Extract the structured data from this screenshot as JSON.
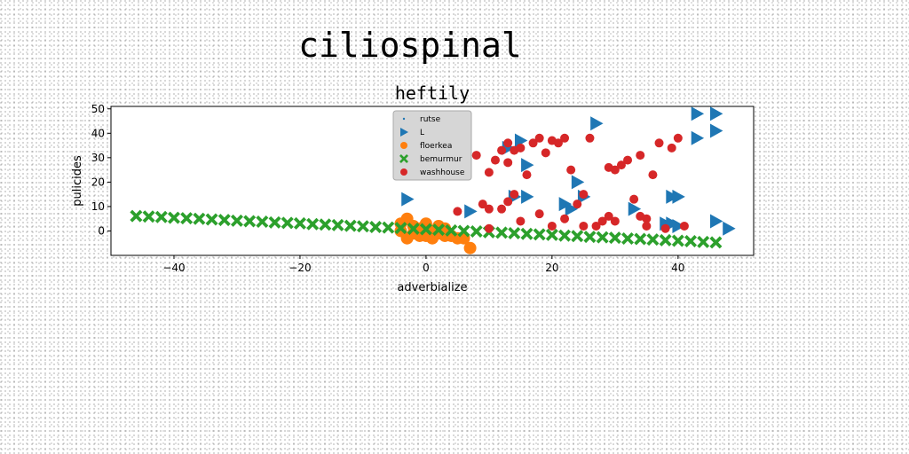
{
  "chart_data": {
    "type": "scatter",
    "suptitle": "ciliospinal",
    "title": "heftily",
    "xlabel": "adverbialize",
    "ylabel": "pulicides",
    "xlim": [
      -50,
      52
    ],
    "ylim": [
      -10,
      51
    ],
    "xticks": [
      -40,
      -20,
      0,
      20,
      40
    ],
    "yticks": [
      0,
      10,
      20,
      30,
      40,
      50
    ],
    "grid": false,
    "legend_position": "top-center",
    "series": [
      {
        "name": "rutse",
        "marker": "point",
        "color": "#1f77b4",
        "points": []
      },
      {
        "name": "L",
        "marker": "triangle-right",
        "color": "#1f77b4",
        "points": [
          [
            -3,
            13
          ],
          [
            7,
            8
          ],
          [
            13,
            34
          ],
          [
            15,
            37
          ],
          [
            16,
            27
          ],
          [
            14,
            14
          ],
          [
            16,
            14
          ],
          [
            22,
            11
          ],
          [
            23,
            9
          ],
          [
            24,
            20
          ],
          [
            25,
            14
          ],
          [
            27,
            44
          ],
          [
            33,
            9
          ],
          [
            38,
            3
          ],
          [
            39,
            14
          ],
          [
            40,
            14
          ],
          [
            39,
            3
          ],
          [
            40,
            2
          ],
          [
            43,
            48
          ],
          [
            43,
            38
          ],
          [
            46,
            48
          ],
          [
            46,
            41
          ],
          [
            46,
            4
          ],
          [
            48,
            1
          ]
        ]
      },
      {
        "name": "floerkea",
        "marker": "circle",
        "color": "#ff7f0e",
        "points": [
          [
            -4,
            3
          ],
          [
            -3,
            5
          ],
          [
            -2,
            2
          ],
          [
            -1,
            1
          ],
          [
            0,
            3
          ],
          [
            1,
            0
          ],
          [
            2,
            -1
          ],
          [
            3,
            1
          ],
          [
            4,
            -2
          ],
          [
            -3,
            -3
          ],
          [
            -1,
            -2
          ],
          [
            1,
            -3
          ],
          [
            3,
            -2
          ],
          [
            5,
            -3
          ],
          [
            7,
            -7
          ],
          [
            -2,
            -1
          ],
          [
            0,
            -2
          ],
          [
            2,
            2
          ],
          [
            -4,
            0
          ],
          [
            6,
            -3
          ]
        ]
      },
      {
        "name": "bemurmur",
        "marker": "x",
        "color": "#2ca02c",
        "points": [
          [
            -46,
            6.1
          ],
          [
            -44,
            5.9
          ],
          [
            -42,
            5.7
          ],
          [
            -40,
            5.4
          ],
          [
            -38,
            5.2
          ],
          [
            -36,
            5.0
          ],
          [
            -34,
            4.7
          ],
          [
            -32,
            4.5
          ],
          [
            -30,
            4.2
          ],
          [
            -28,
            4.0
          ],
          [
            -26,
            3.8
          ],
          [
            -24,
            3.5
          ],
          [
            -22,
            3.3
          ],
          [
            -20,
            3.1
          ],
          [
            -18,
            2.8
          ],
          [
            -16,
            2.6
          ],
          [
            -14,
            2.4
          ],
          [
            -12,
            2.1
          ],
          [
            -10,
            1.9
          ],
          [
            -8,
            1.6
          ],
          [
            -6,
            1.4
          ],
          [
            -4,
            1.2
          ],
          [
            -2,
            0.9
          ],
          [
            0,
            0.7
          ],
          [
            2,
            0.5
          ],
          [
            4,
            0.2
          ],
          [
            6,
            0.0
          ],
          [
            8,
            -0.2
          ],
          [
            10,
            -0.5
          ],
          [
            12,
            -0.7
          ],
          [
            14,
            -0.9
          ],
          [
            16,
            -1.2
          ],
          [
            18,
            -1.4
          ],
          [
            20,
            -1.6
          ],
          [
            22,
            -1.9
          ],
          [
            24,
            -2.1
          ],
          [
            26,
            -2.4
          ],
          [
            28,
            -2.6
          ],
          [
            30,
            -2.8
          ],
          [
            32,
            -3.1
          ],
          [
            34,
            -3.3
          ],
          [
            36,
            -3.5
          ],
          [
            38,
            -3.8
          ],
          [
            40,
            -4.0
          ],
          [
            42,
            -4.2
          ],
          [
            44,
            -4.5
          ],
          [
            46,
            -4.7
          ]
        ]
      },
      {
        "name": "washhouse",
        "marker": "circle",
        "color": "#d62728",
        "points": [
          [
            8,
            31
          ],
          [
            9,
            11
          ],
          [
            10,
            9
          ],
          [
            10,
            24
          ],
          [
            11,
            29
          ],
          [
            12,
            33
          ],
          [
            13,
            36
          ],
          [
            13,
            28
          ],
          [
            13,
            12
          ],
          [
            14,
            33
          ],
          [
            14,
            15
          ],
          [
            15,
            4
          ],
          [
            15,
            34
          ],
          [
            16,
            23
          ],
          [
            17,
            36
          ],
          [
            18,
            38
          ],
          [
            18,
            7
          ],
          [
            19,
            32
          ],
          [
            20,
            37
          ],
          [
            20,
            2
          ],
          [
            21,
            36
          ],
          [
            22,
            5
          ],
          [
            22,
            38
          ],
          [
            23,
            25
          ],
          [
            24,
            11
          ],
          [
            25,
            2
          ],
          [
            25,
            15
          ],
          [
            26,
            38
          ],
          [
            27,
            2
          ],
          [
            28,
            4
          ],
          [
            29,
            6
          ],
          [
            29,
            26
          ],
          [
            30,
            25
          ],
          [
            30,
            4
          ],
          [
            31,
            27
          ],
          [
            32,
            29
          ],
          [
            33,
            13
          ],
          [
            34,
            31
          ],
          [
            34,
            6
          ],
          [
            35,
            5
          ],
          [
            35,
            2
          ],
          [
            36,
            23
          ],
          [
            37,
            36
          ],
          [
            38,
            1
          ],
          [
            39,
            34
          ],
          [
            40,
            38
          ],
          [
            41,
            2
          ],
          [
            5,
            8
          ],
          [
            10,
            1
          ],
          [
            12,
            9
          ]
        ]
      }
    ]
  }
}
